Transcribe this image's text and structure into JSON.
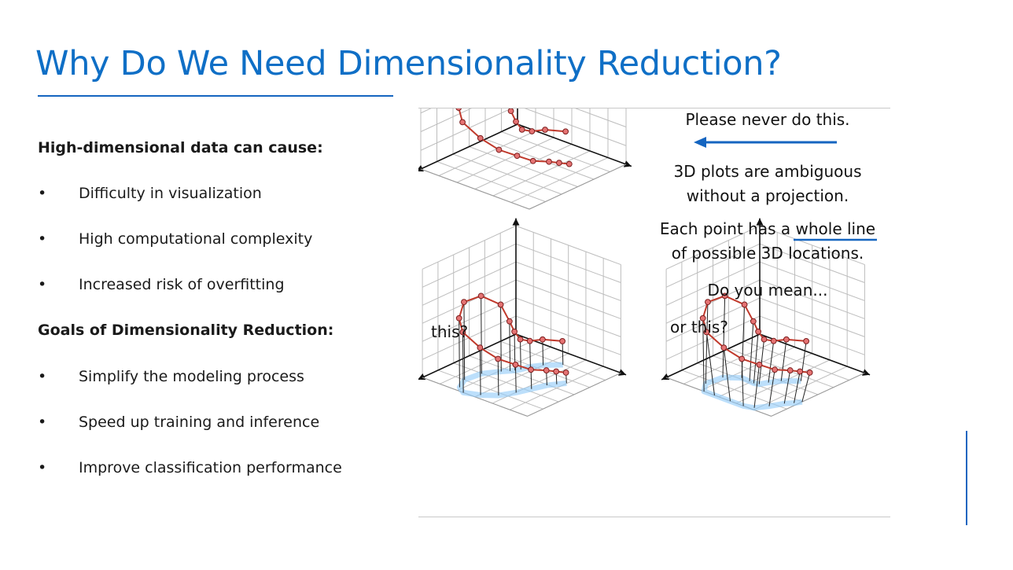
{
  "slide": {
    "title": "Why Do We Need Dimensionality Reduction?",
    "section1": {
      "heading": "High-dimensional data can cause:",
      "bullets": [
        "Difficulty in visualization",
        "High computational complexity",
        "Increased risk of overfitting"
      ]
    },
    "section2": {
      "heading": "Goals of Dimensionality Reduction:",
      "bullets": [
        "Simplify the modeling process",
        "Speed up training and inference",
        "Improve classification performance"
      ]
    },
    "bullet_symbol": "•"
  },
  "figure": {
    "caption_never": "Please never do this.",
    "ambiguous_line1": "3D plots are ambiguous",
    "ambiguous_line2": "without a projection.",
    "each_point_prefix": "Each point has a ",
    "each_point_underlined": "whole line",
    "each_point_line2": "of possible 3D locations.",
    "question": "Do you mean...",
    "label_this": "this?",
    "label_or_this": "or this?",
    "colors": {
      "curve": "#c0392b",
      "point_fill": "#e57373",
      "accent_blue": "#1565c0",
      "shadow": "#90caf9",
      "grid": "#bdbdbd"
    }
  }
}
